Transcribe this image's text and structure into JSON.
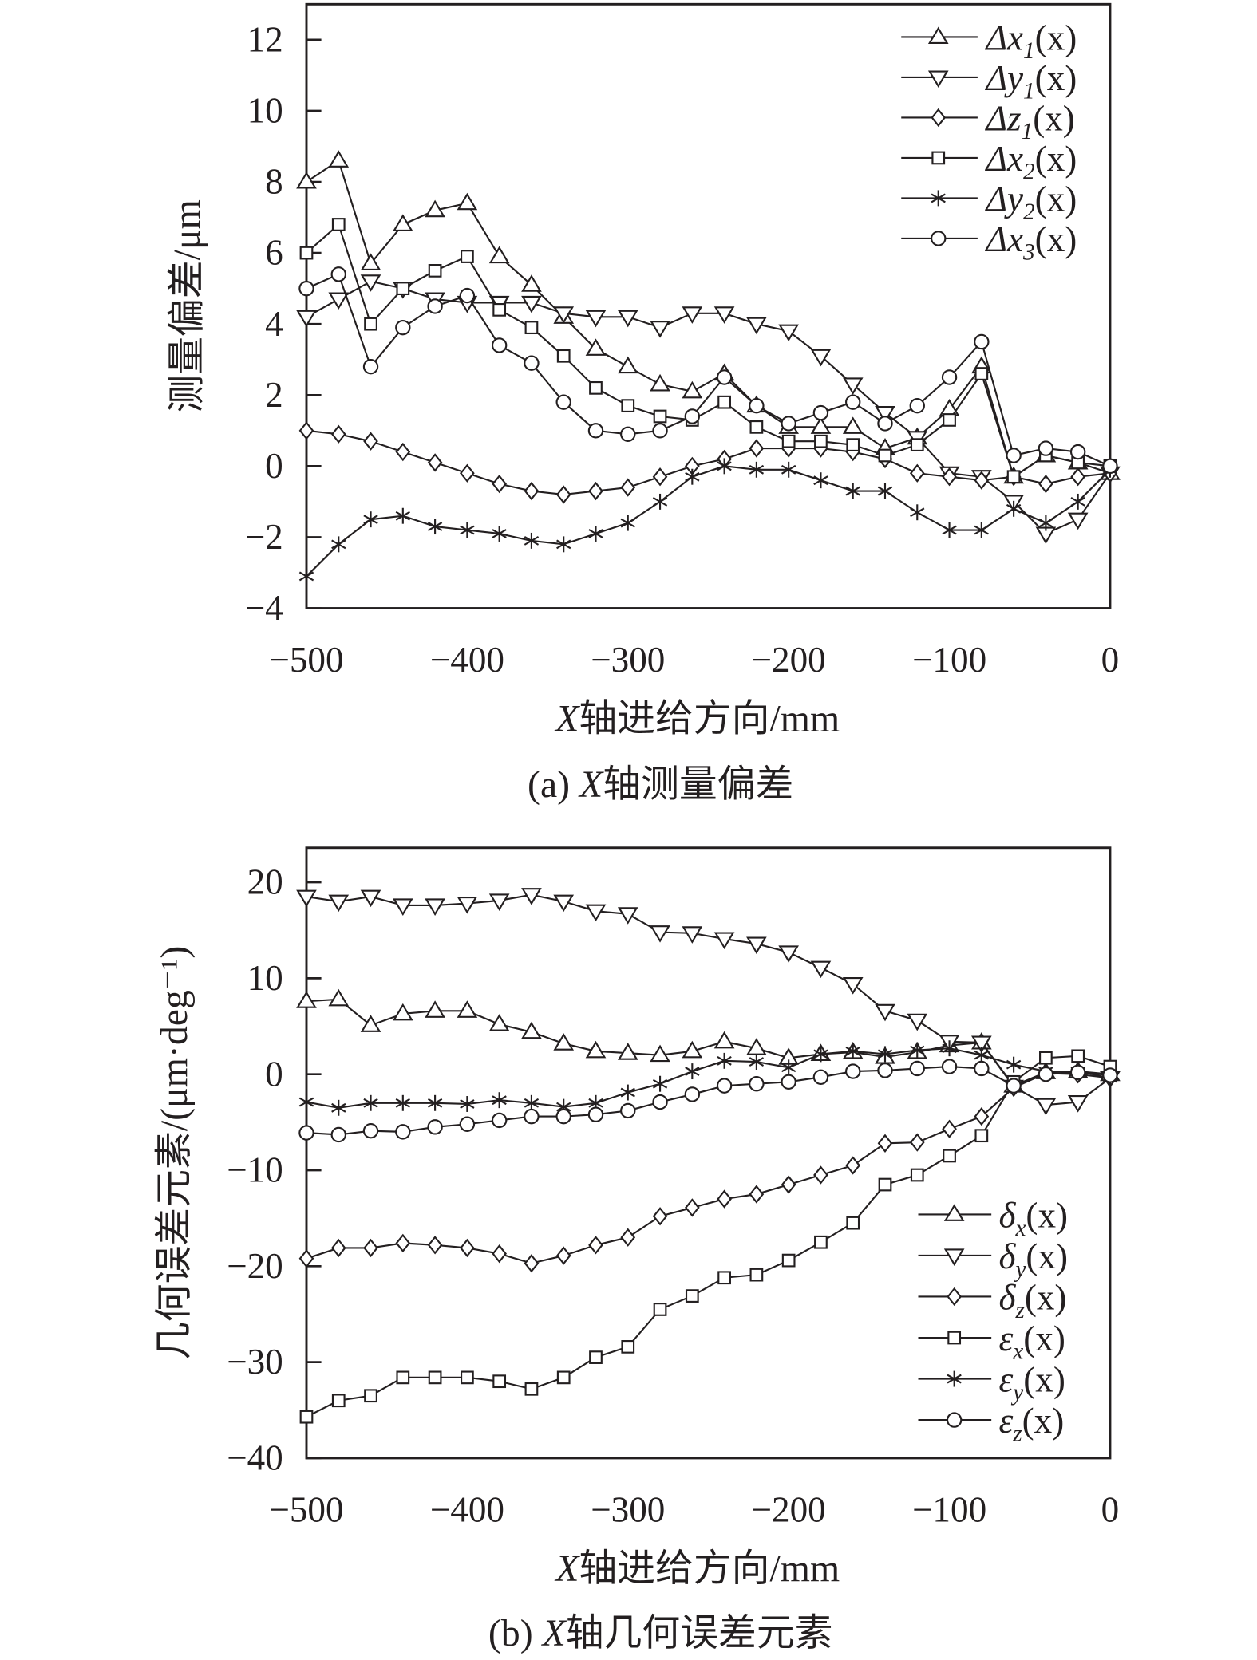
{
  "x_values": [
    -500,
    -480,
    -460,
    -440,
    -420,
    -400,
    -380,
    -360,
    -340,
    -320,
    -300,
    -280,
    -260,
    -240,
    -220,
    -200,
    -180,
    -160,
    -140,
    -120,
    -100,
    -80,
    -60,
    -40,
    -20,
    0
  ],
  "chart_data": [
    {
      "type": "line",
      "caption": {
        "prefix": "(a) ",
        "italic": "X",
        "suffix": "轴测量偏差"
      },
      "xlabel": {
        "italic": "X",
        "text": "轴进给方向/mm"
      },
      "ylabel": "测量偏差/μm",
      "xlim": [
        -500,
        0
      ],
      "ylim": [
        -4,
        13
      ],
      "xticks": [
        -500,
        -400,
        -300,
        -200,
        -100,
        0
      ],
      "xtick_labels": [
        "−500",
        "−400",
        "−300",
        "−200",
        "−100",
        "0"
      ],
      "yticks": [
        -4,
        -2,
        0,
        2,
        4,
        6,
        8,
        10,
        12
      ],
      "ytick_labels": [
        "−4",
        "−2",
        "0",
        "2",
        "4",
        "6",
        "8",
        "10",
        "12"
      ],
      "legend_position": "top-right",
      "series": [
        {
          "name": "Δx1(x)",
          "label": {
            "base": "Δx",
            "sub": "1",
            "arg": "(x)"
          },
          "marker": "triangle-up",
          "values": [
            8.0,
            8.6,
            5.7,
            6.8,
            7.2,
            7.4,
            5.9,
            5.1,
            4.2,
            3.3,
            2.8,
            2.3,
            2.1,
            2.6,
            1.7,
            1.1,
            1.1,
            1.1,
            0.5,
            0.8,
            1.6,
            2.8,
            -0.3,
            0.3,
            0.1,
            -0.2
          ]
        },
        {
          "name": "Δy1(x)",
          "label": {
            "base": "Δy",
            "sub": "1",
            "arg": "(x)"
          },
          "marker": "triangle-down",
          "values": [
            4.2,
            4.7,
            5.2,
            5.0,
            4.7,
            4.6,
            4.6,
            4.6,
            4.3,
            4.2,
            4.2,
            3.9,
            4.3,
            4.3,
            4.0,
            3.8,
            3.1,
            2.3,
            1.5,
            0.8,
            -0.2,
            -0.3,
            -1.0,
            -1.9,
            -1.5,
            -0.2
          ]
        },
        {
          "name": "Δz1(x)",
          "label": {
            "base": "Δz",
            "sub": "1",
            "arg": "(x)"
          },
          "marker": "diamond",
          "values": [
            1.0,
            0.9,
            0.7,
            0.4,
            0.1,
            -0.2,
            -0.5,
            -0.7,
            -0.8,
            -0.7,
            -0.6,
            -0.3,
            0.0,
            0.2,
            0.5,
            0.5,
            0.5,
            0.4,
            0.2,
            -0.2,
            -0.3,
            -0.4,
            -0.3,
            -0.5,
            -0.3,
            -0.2
          ]
        },
        {
          "name": "Δx2(x)",
          "label": {
            "base": "Δx",
            "sub": "2",
            "arg": "(x)"
          },
          "marker": "square",
          "values": [
            6.0,
            6.8,
            4.0,
            5.0,
            5.5,
            5.9,
            4.4,
            3.9,
            3.1,
            2.2,
            1.7,
            1.4,
            1.3,
            1.8,
            1.1,
            0.7,
            0.7,
            0.6,
            0.3,
            0.6,
            1.3,
            2.6,
            -0.3,
            0.3,
            0.1,
            0.0
          ]
        },
        {
          "name": "Δy2(x)",
          "label": {
            "base": "Δy",
            "sub": "2",
            "arg": "(x)"
          },
          "marker": "star",
          "values": [
            -3.1,
            -2.2,
            -1.5,
            -1.4,
            -1.7,
            -1.8,
            -1.9,
            -2.1,
            -2.2,
            -1.9,
            -1.6,
            -1.0,
            -0.3,
            0.0,
            -0.1,
            -0.1,
            -0.4,
            -0.7,
            -0.7,
            -1.3,
            -1.8,
            -1.8,
            -1.2,
            -1.6,
            -1.0,
            -0.1
          ]
        },
        {
          "name": "Δx3(x)",
          "label": {
            "base": "Δx",
            "sub": "3",
            "arg": "(x)"
          },
          "marker": "circle",
          "values": [
            5.0,
            5.4,
            2.8,
            3.9,
            4.5,
            4.8,
            3.4,
            2.9,
            1.8,
            1.0,
            0.9,
            1.0,
            1.4,
            2.5,
            1.7,
            1.2,
            1.5,
            1.8,
            1.2,
            1.7,
            2.5,
            3.5,
            0.3,
            0.5,
            0.4,
            0.0
          ]
        }
      ]
    },
    {
      "type": "line",
      "caption": {
        "prefix": "(b) ",
        "italic": "X",
        "suffix": "轴几何误差元素"
      },
      "xlabel": {
        "italic": "X",
        "text": "轴进给方向/mm"
      },
      "ylabel": "几何误差元素/(μm·deg⁻¹)",
      "xlim": [
        -500,
        0
      ],
      "ylim": [
        -40,
        23.6
      ],
      "xticks": [
        -500,
        -400,
        -300,
        -200,
        -100,
        0
      ],
      "xtick_labels": [
        "−500",
        "−400",
        "−300",
        "−200",
        "−100",
        "0"
      ],
      "yticks": [
        -40,
        -30,
        -20,
        -10,
        0,
        10,
        20
      ],
      "ytick_labels": [
        "−40",
        "−30",
        "−20",
        "−10",
        "0",
        "10",
        "20"
      ],
      "legend_position": "bottom-right",
      "series": [
        {
          "name": "δx(x)",
          "label": {
            "base": "δ",
            "sub": "x",
            "arg": "(x)"
          },
          "marker": "triangle-up",
          "values": [
            7.6,
            7.8,
            5.1,
            6.3,
            6.6,
            6.6,
            5.2,
            4.4,
            3.2,
            2.4,
            2.2,
            2.0,
            2.4,
            3.4,
            2.7,
            1.7,
            2.1,
            2.3,
            1.8,
            2.3,
            3.0,
            3.3,
            -1.2,
            0.2,
            0.3,
            0.0
          ]
        },
        {
          "name": "δy(x)",
          "label": {
            "base": "δ",
            "sub": "y",
            "arg": "(x)"
          },
          "marker": "triangle-down",
          "values": [
            18.5,
            18.0,
            18.5,
            17.6,
            17.6,
            17.8,
            18.1,
            18.7,
            18.0,
            17.0,
            16.7,
            14.8,
            14.7,
            14.1,
            13.6,
            12.7,
            11.1,
            9.4,
            6.6,
            5.6,
            3.4,
            3.3,
            -1.3,
            -3.2,
            -2.9,
            -0.4
          ]
        },
        {
          "name": "δz(x)",
          "label": {
            "base": "δ",
            "sub": "z",
            "arg": "(x)"
          },
          "marker": "diamond",
          "values": [
            -19.2,
            -18.1,
            -18.1,
            -17.6,
            -17.8,
            -18.1,
            -18.7,
            -19.7,
            -18.9,
            -17.8,
            -17.0,
            -14.8,
            -13.9,
            -13.0,
            -12.5,
            -11.5,
            -10.5,
            -9.5,
            -7.2,
            -7.1,
            -5.7,
            -4.4,
            -1.4,
            0.1,
            0.0,
            -0.4
          ]
        },
        {
          "name": "εx(x)",
          "label": {
            "base": "ε",
            "sub": "x",
            "arg": "(x)"
          },
          "marker": "square",
          "values": [
            -35.7,
            -34.0,
            -33.5,
            -31.6,
            -31.6,
            -31.6,
            -32.0,
            -32.8,
            -31.6,
            -29.5,
            -28.4,
            -24.5,
            -23.1,
            -21.2,
            -20.9,
            -19.4,
            -17.5,
            -15.5,
            -11.5,
            -10.5,
            -8.5,
            -6.4,
            -0.8,
            1.7,
            1.9,
            0.8
          ]
        },
        {
          "name": "εy(x)",
          "label": {
            "base": "ε",
            "sub": "y",
            "arg": "(x)"
          },
          "marker": "star",
          "values": [
            -2.9,
            -3.5,
            -3.0,
            -3.0,
            -3.0,
            -3.1,
            -2.7,
            -3.0,
            -3.4,
            -3.0,
            -1.9,
            -1.0,
            0.3,
            1.4,
            1.3,
            0.7,
            2.1,
            2.4,
            2.1,
            2.5,
            2.7,
            2.0,
            1.0,
            0.3,
            0.3,
            -0.4
          ]
        },
        {
          "name": "εz(x)",
          "label": {
            "base": "ε",
            "sub": "z",
            "arg": "(x)"
          },
          "marker": "circle",
          "values": [
            -6.1,
            -6.3,
            -5.9,
            -6.0,
            -5.5,
            -5.2,
            -4.8,
            -4.4,
            -4.4,
            -4.2,
            -3.8,
            -2.9,
            -2.1,
            -1.2,
            -1.0,
            -0.8,
            -0.3,
            0.3,
            0.4,
            0.6,
            0.8,
            0.6,
            -1.2,
            0.0,
            0.2,
            -0.1
          ]
        }
      ]
    }
  ]
}
